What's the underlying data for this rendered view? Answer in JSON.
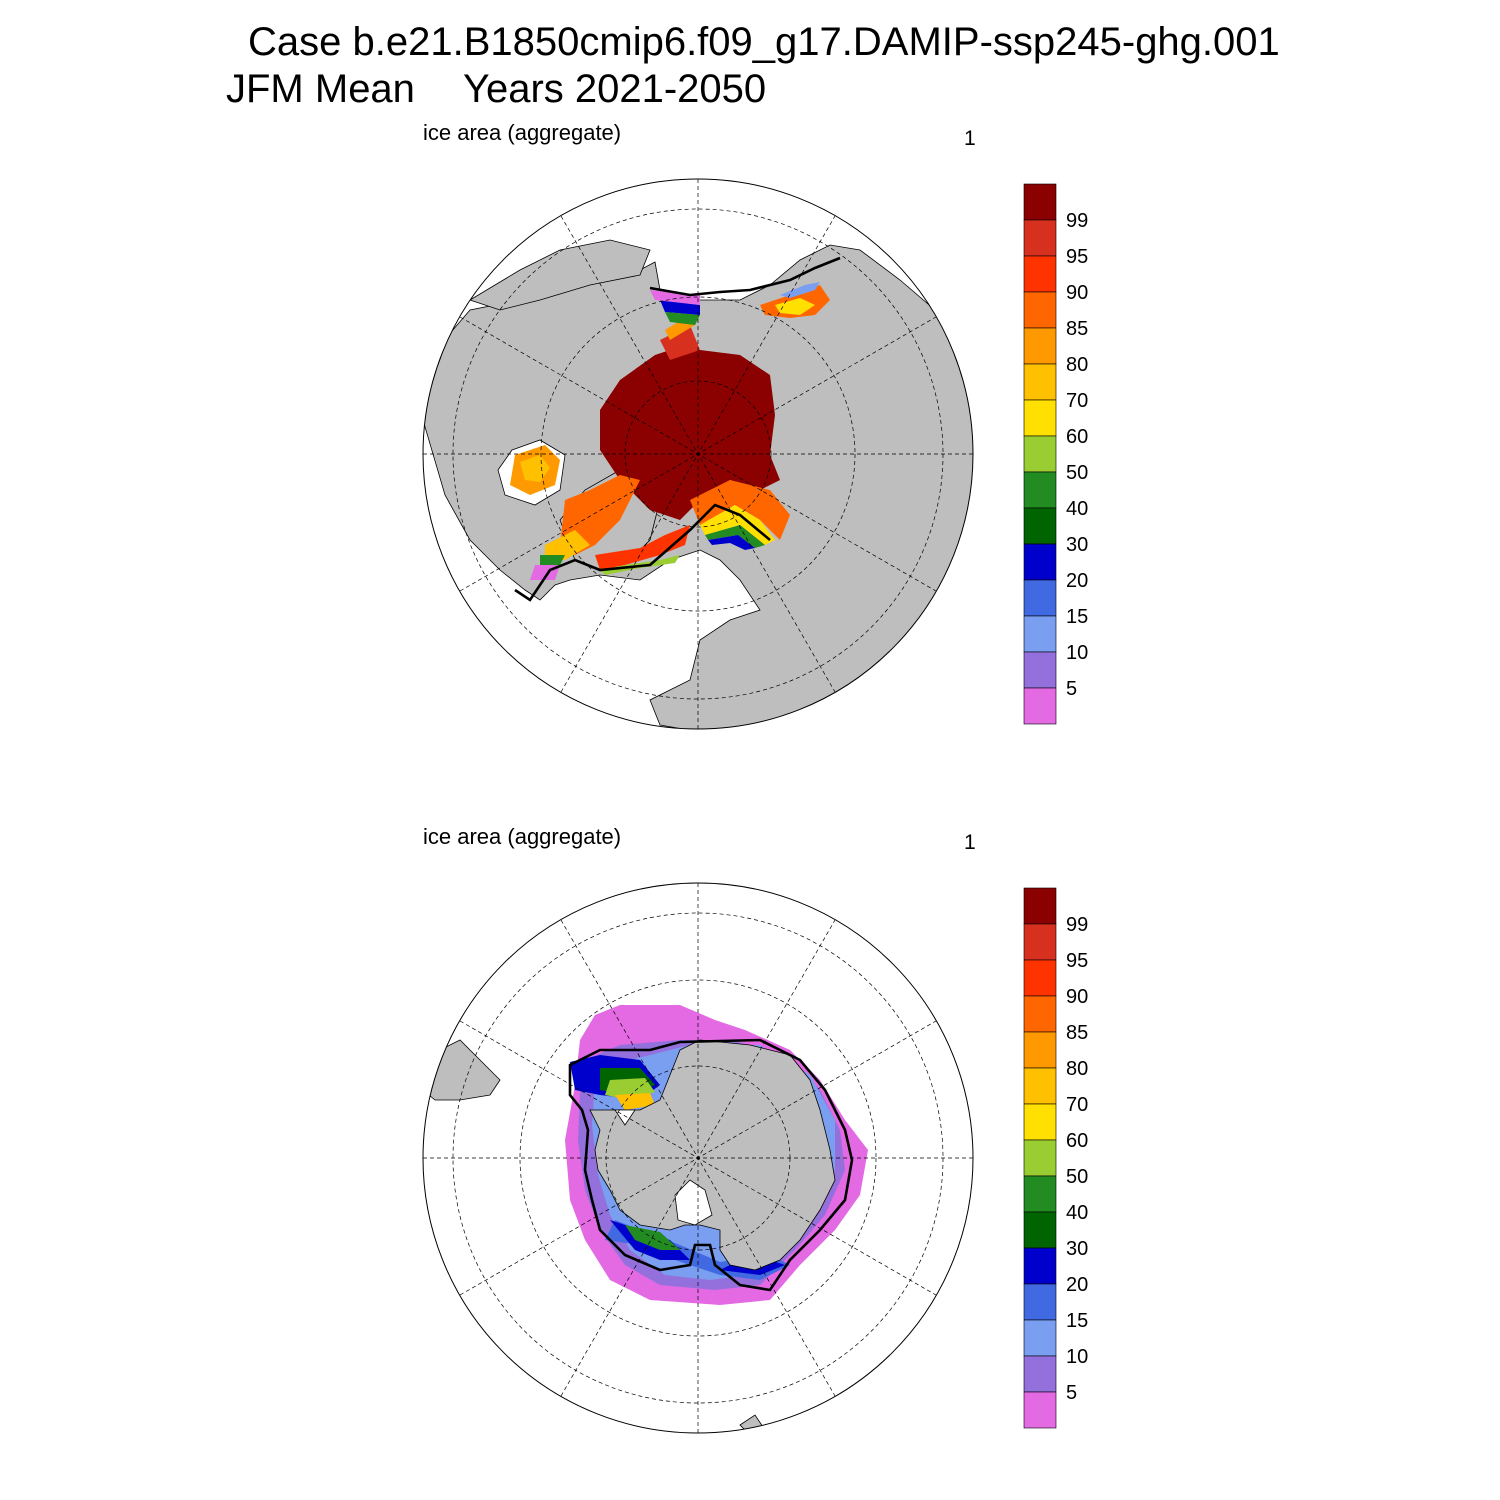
{
  "title": {
    "line1": "Case b.e21.B1850cmip6.f09_g17.DAMIP-ssp245-ghg.001",
    "season": "JFM Mean",
    "years": "Years 2021-2050"
  },
  "panels": [
    {
      "hemisphere": "north",
      "label": "ice area  (aggregate)",
      "index": "1"
    },
    {
      "hemisphere": "south",
      "label": "ice area  (aggregate)",
      "index": "1"
    }
  ],
  "colorbar": {
    "labels": [
      "99",
      "95",
      "90",
      "85",
      "80",
      "70",
      "60",
      "50",
      "40",
      "30",
      "20",
      "15",
      "10",
      "5"
    ],
    "colors": [
      "#8b0000",
      "#d7301f",
      "#ff3300",
      "#ff6600",
      "#ff9900",
      "#ffc000",
      "#ffe000",
      "#9acd32",
      "#228b22",
      "#006400",
      "#0000cd",
      "#4169e1",
      "#7a9ef0",
      "#9370db",
      "#e36ae3"
    ]
  },
  "colors": {
    "land": "#bebebe",
    "ocean": "#ffffff",
    "ice_edge_line": "#000000"
  }
}
